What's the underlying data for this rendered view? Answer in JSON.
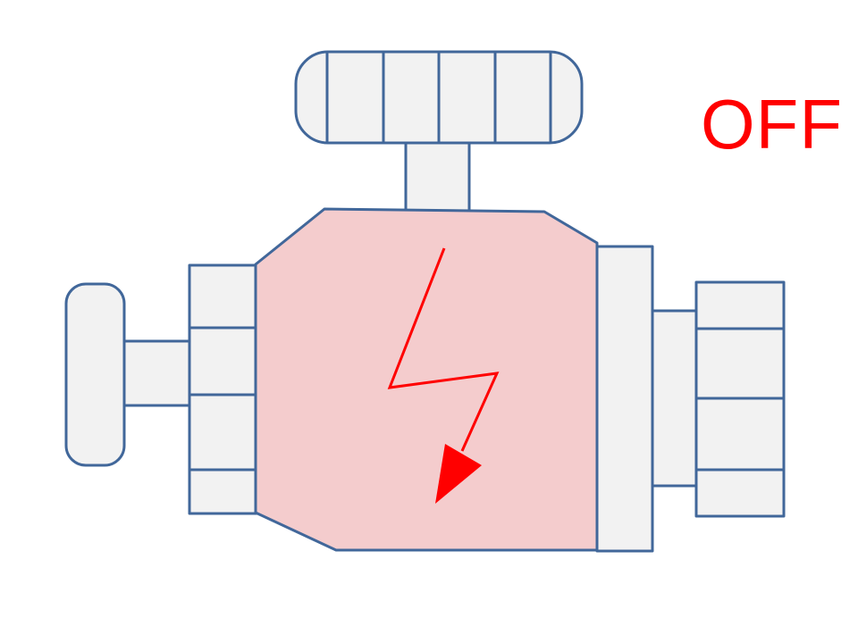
{
  "status": {
    "label": "OFF",
    "color": "#ff0000"
  },
  "device": {
    "icon": "electric-valve-icon",
    "body_fill": "#f4cccd",
    "part_fill": "#f2f2f2",
    "outline_color": "#41679a",
    "symbol": {
      "icon": "lightning-bolt-arrow-icon",
      "color": "#ff0000"
    }
  }
}
